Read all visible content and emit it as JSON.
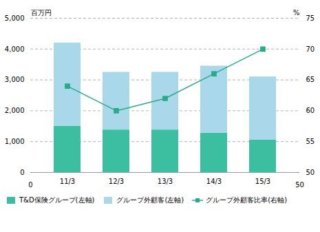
{
  "chart_data": {
    "type": "bar",
    "stacked": true,
    "categories": [
      "11/3",
      "12/3",
      "13/3",
      "14/3",
      "15/3"
    ],
    "series": [
      {
        "name": "T&D保険グループ(左軸)",
        "color": "#3bbfa0",
        "values": [
          1500,
          1380,
          1380,
          1280,
          1050
        ]
      },
      {
        "name": "グループ外顧客(左軸)",
        "color": "#a8d8ea",
        "values": [
          2700,
          1870,
          1870,
          2170,
          2050
        ]
      },
      {
        "name": "グループ外顧客比率(右軸)",
        "color": "#2aaa8a",
        "values": [
          64.0,
          60.0,
          62.0,
          66.0,
          70.0
        ],
        "axis": "y2",
        "type": "line",
        "marker": "square"
      }
    ],
    "ylabel": "百万円",
    "y2label": "%",
    "ylim": [
      0,
      5000
    ],
    "yticks": [
      0,
      {
        "value": 1000,
        "label": "1,000"
      },
      {
        "value": 2000,
        "label": "2,000"
      },
      {
        "value": 3000,
        "label": "3,000"
      },
      {
        "value": 4000,
        "label": "4,000"
      },
      {
        "value": 5000,
        "label": "5,000"
      }
    ],
    "y2lim": [
      50,
      75
    ],
    "y2ticks": [
      50,
      55,
      60,
      65,
      70,
      75
    ],
    "annotations": [
      "0",
      "50"
    ],
    "grid": true,
    "legend": "bottom"
  }
}
